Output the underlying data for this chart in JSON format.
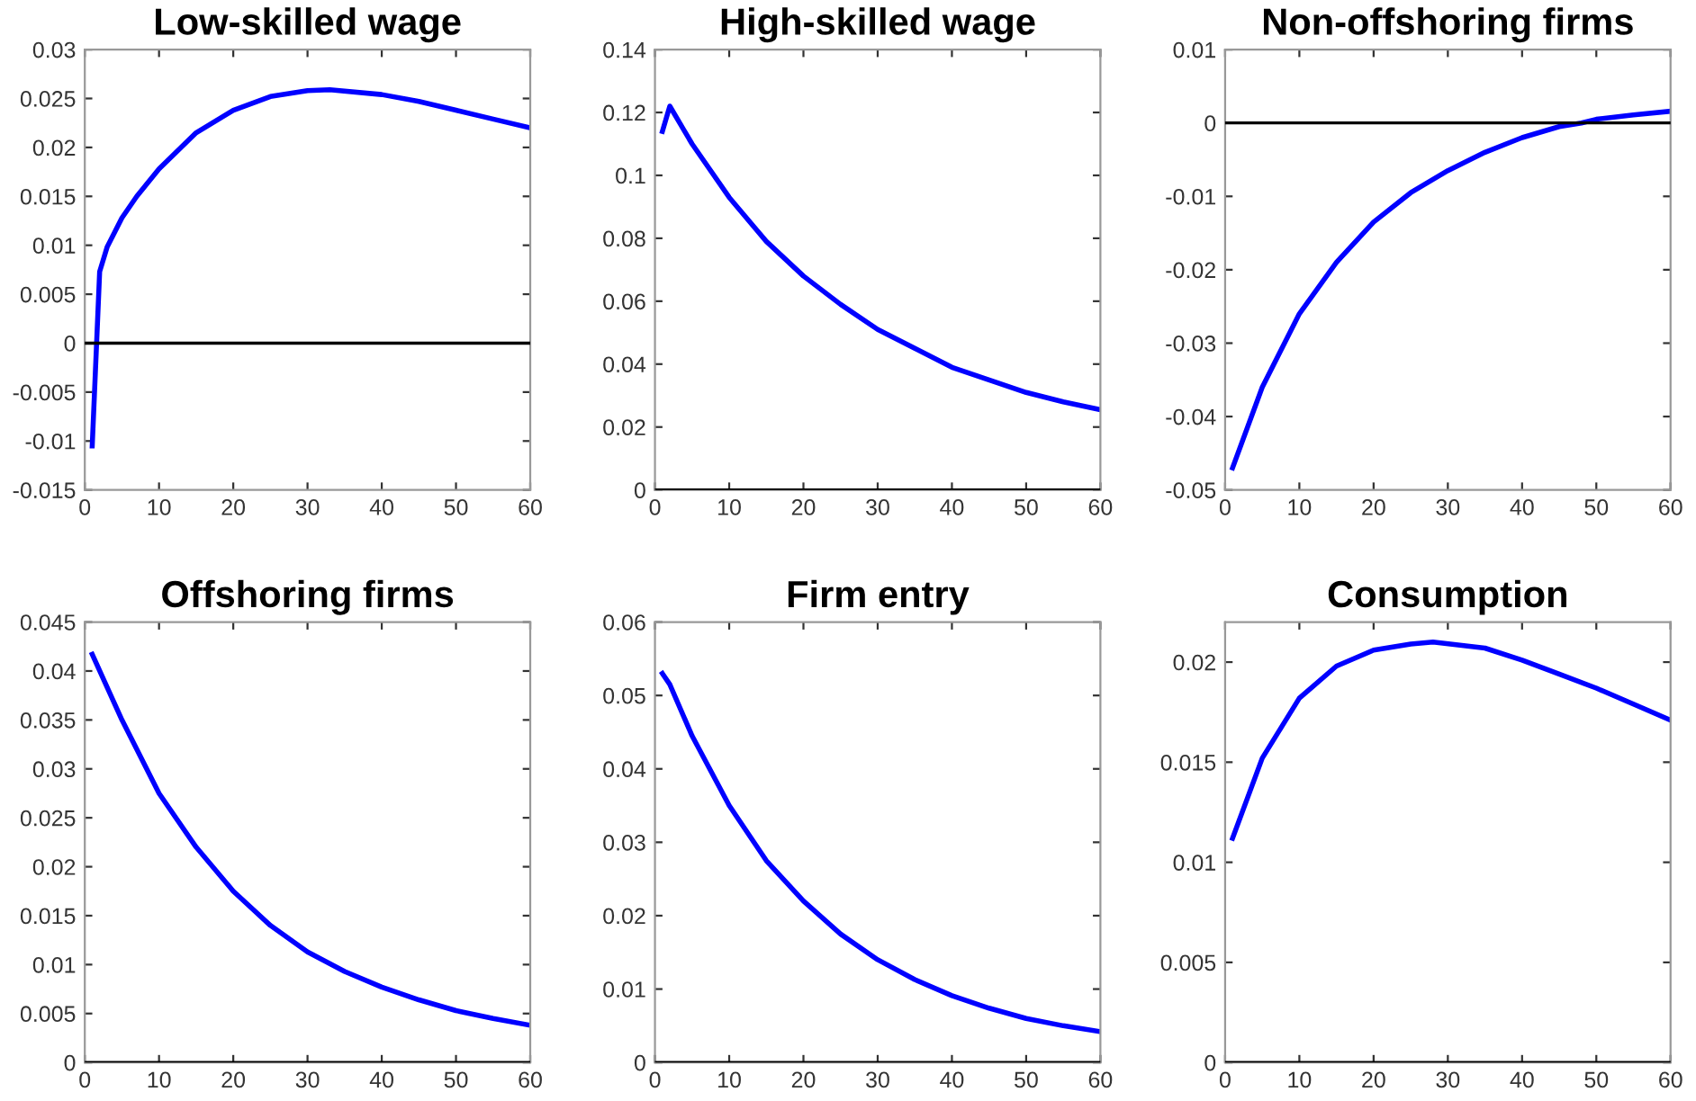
{
  "chart_data": [
    {
      "type": "line",
      "title": "Low-skilled wage",
      "xlim": [
        0,
        60
      ],
      "xticks": [
        0,
        10,
        20,
        30,
        40,
        50,
        60
      ],
      "ylim": [
        -0.015,
        0.03
      ],
      "yticks": [
        -0.015,
        -0.01,
        -0.005,
        0,
        0.005,
        0.01,
        0.015,
        0.02,
        0.025,
        0.03
      ],
      "grid": false,
      "ref_lines": [
        {
          "axis": "y",
          "value": 0,
          "color": "#000000"
        }
      ],
      "series": [
        {
          "color": "#0000ff",
          "x": [
            1,
            2,
            3,
            5,
            7,
            10,
            15,
            20,
            25,
            30,
            33,
            40,
            45,
            50,
            55,
            60
          ],
          "values": [
            -0.0105,
            0.0073,
            0.0098,
            0.0128,
            0.015,
            0.0178,
            0.0215,
            0.0238,
            0.0252,
            0.0258,
            0.0259,
            0.0254,
            0.0247,
            0.0238,
            0.0229,
            0.022
          ]
        }
      ]
    },
    {
      "type": "line",
      "title": "High-skilled wage",
      "xlim": [
        0,
        60
      ],
      "xticks": [
        0,
        10,
        20,
        30,
        40,
        50,
        60
      ],
      "ylim": [
        0,
        0.14
      ],
      "yticks": [
        0,
        0.02,
        0.04,
        0.06,
        0.08,
        0.1,
        0.12,
        0.14
      ],
      "grid": false,
      "ref_lines": [
        {
          "axis": "y",
          "value": 0,
          "color": "#000000"
        }
      ],
      "series": [
        {
          "color": "#0000ff",
          "x": [
            1,
            2,
            5,
            10,
            15,
            20,
            25,
            30,
            35,
            40,
            45,
            50,
            55,
            60
          ],
          "values": [
            0.114,
            0.122,
            0.11,
            0.093,
            0.079,
            0.068,
            0.059,
            0.051,
            0.045,
            0.039,
            0.035,
            0.031,
            0.028,
            0.0255
          ]
        }
      ]
    },
    {
      "type": "line",
      "title": "Non-offshoring firms",
      "xlim": [
        0,
        60
      ],
      "xticks": [
        0,
        10,
        20,
        30,
        40,
        50,
        60
      ],
      "ylim": [
        -0.05,
        0.01
      ],
      "yticks": [
        -0.05,
        -0.04,
        -0.03,
        -0.02,
        -0.01,
        0,
        0.01
      ],
      "grid": false,
      "ref_lines": [
        {
          "axis": "y",
          "value": 0,
          "color": "#000000"
        }
      ],
      "series": [
        {
          "color": "#0000ff",
          "x": [
            1,
            5,
            10,
            15,
            20,
            25,
            30,
            35,
            40,
            45,
            48,
            50,
            55,
            60
          ],
          "values": [
            -0.047,
            -0.036,
            -0.026,
            -0.019,
            -0.0135,
            -0.0095,
            -0.0065,
            -0.004,
            -0.002,
            -0.0005,
            0,
            0.0005,
            0.0011,
            0.0016
          ]
        }
      ]
    },
    {
      "type": "line",
      "title": "Offshoring firms",
      "xlim": [
        0,
        60
      ],
      "xticks": [
        0,
        10,
        20,
        30,
        40,
        50,
        60
      ],
      "ylim": [
        0,
        0.045
      ],
      "yticks": [
        0,
        0.005,
        0.01,
        0.015,
        0.02,
        0.025,
        0.03,
        0.035,
        0.04,
        0.045
      ],
      "grid": false,
      "ref_lines": [
        {
          "axis": "y",
          "value": 0,
          "color": "#000000"
        }
      ],
      "series": [
        {
          "color": "#0000ff",
          "x": [
            1,
            5,
            10,
            15,
            20,
            25,
            30,
            35,
            40,
            45,
            50,
            55,
            60
          ],
          "values": [
            0.0417,
            0.035,
            0.0275,
            0.022,
            0.0175,
            0.014,
            0.0113,
            0.0093,
            0.0077,
            0.0064,
            0.0053,
            0.0045,
            0.0038
          ]
        }
      ]
    },
    {
      "type": "line",
      "title": "Firm entry",
      "xlim": [
        0,
        60
      ],
      "xticks": [
        0,
        10,
        20,
        30,
        40,
        50,
        60
      ],
      "ylim": [
        0,
        0.06
      ],
      "yticks": [
        0,
        0.01,
        0.02,
        0.03,
        0.04,
        0.05,
        0.06
      ],
      "grid": false,
      "ref_lines": [
        {
          "axis": "y",
          "value": 0,
          "color": "#000000"
        }
      ],
      "series": [
        {
          "color": "#0000ff",
          "x": [
            1,
            2,
            5,
            10,
            15,
            20,
            25,
            30,
            35,
            40,
            45,
            50,
            55,
            60
          ],
          "values": [
            0.053,
            0.0515,
            0.0445,
            0.035,
            0.0275,
            0.022,
            0.0175,
            0.014,
            0.0113,
            0.0091,
            0.0074,
            0.006,
            0.005,
            0.0042
          ]
        }
      ]
    },
    {
      "type": "line",
      "title": "Consumption",
      "xlim": [
        0,
        60
      ],
      "xticks": [
        0,
        10,
        20,
        30,
        40,
        50,
        60
      ],
      "ylim": [
        0,
        0.022
      ],
      "yticks": [
        0,
        0.005,
        0.01,
        0.015,
        0.02
      ],
      "grid": false,
      "ref_lines": [
        {
          "axis": "y",
          "value": 0,
          "color": "#000000"
        }
      ],
      "series": [
        {
          "color": "#0000ff",
          "x": [
            1,
            5,
            10,
            15,
            20,
            25,
            28,
            35,
            40,
            45,
            50,
            55,
            60
          ],
          "values": [
            0.0112,
            0.0152,
            0.0182,
            0.0198,
            0.0206,
            0.0209,
            0.021,
            0.0207,
            0.0201,
            0.0194,
            0.0187,
            0.0179,
            0.0171
          ]
        }
      ]
    }
  ]
}
